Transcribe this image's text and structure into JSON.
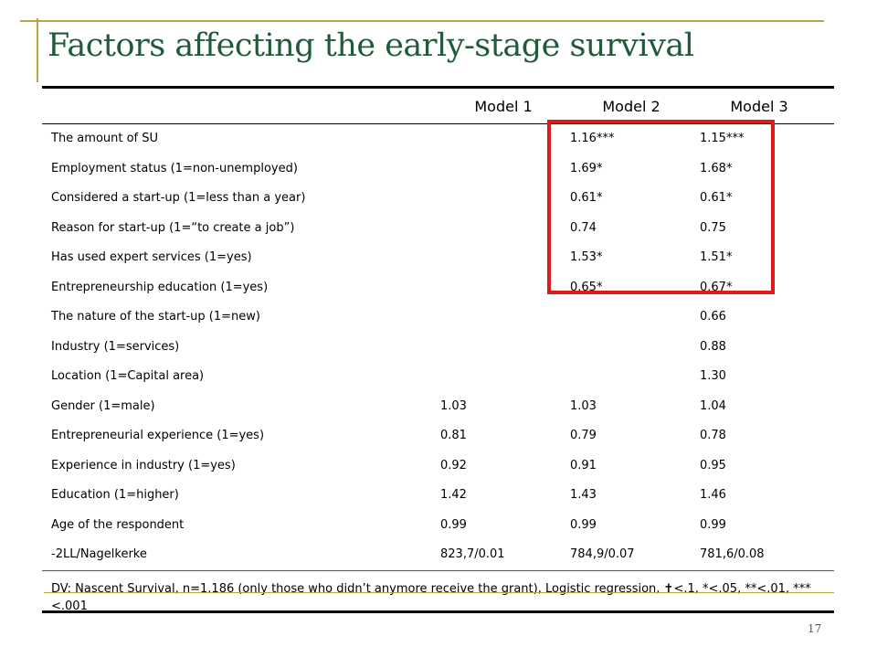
{
  "slide": {
    "title": "Factors affecting the early-stage survival",
    "page_number": "17",
    "accent_color": "#b9a24a",
    "title_color": "#1f5b3a",
    "highlight_color": "#e0191b"
  },
  "table": {
    "headers": [
      "",
      "Model 1",
      "Model 2",
      "Model 3"
    ],
    "rows": [
      {
        "label": "The amount of SU",
        "m1": "",
        "m2": "1.16***",
        "m3": "1.15***"
      },
      {
        "label": "Employment status (1=non-unemployed)",
        "m1": "",
        "m2": "1.69*",
        "m3": "1.68*"
      },
      {
        "label": "Considered a start-up (1=less than a year)",
        "m1": "",
        "m2": "0.61*",
        "m3": "0.61*"
      },
      {
        "label": "Reason for start-up (1=“to create a job”)",
        "m1": "",
        "m2": "0.74",
        "m3": "0.75"
      },
      {
        "label": "Has used expert services (1=yes)",
        "m1": "",
        "m2": "1.53*",
        "m3": "1.51*"
      },
      {
        "label": "Entrepreneurship education (1=yes)",
        "m1": "",
        "m2": "0.65*",
        "m3": "0.67*"
      },
      {
        "label": "The nature of the start-up (1=new)",
        "m1": "",
        "m2": "",
        "m3": "0.66"
      },
      {
        "label": "Industry (1=services)",
        "m1": "",
        "m2": "",
        "m3": "0.88"
      },
      {
        "label": "Location (1=Capital area)",
        "m1": "",
        "m2": "",
        "m3": "1.30"
      },
      {
        "label": "Gender (1=male)",
        "m1": "1.03",
        "m2": "1.03",
        "m3": "1.04"
      },
      {
        "label": "Entrepreneurial experience (1=yes)",
        "m1": "0.81",
        "m2": "0.79",
        "m3": "0.78"
      },
      {
        "label": "Experience in industry (1=yes)",
        "m1": "0.92",
        "m2": "0.91",
        "m3": "0.95"
      },
      {
        "label": "Education (1=higher)",
        "m1": "1.42",
        "m2": "1.43",
        "m3": "1.46"
      },
      {
        "label": "Age of the respondent",
        "m1": "0.99",
        "m2": "0.99",
        "m3": "0.99"
      },
      {
        "label": "-2LL/Nagelkerke",
        "m1": "823,7/0.01",
        "m2": "784,9/0.07",
        "m3": "781,6/0.08"
      }
    ],
    "footnote": "DV: Nascent Survival, n=1.186 (only those who didn’t anymore receive the grant), Logistic regression, ✝<.1, *<.05, **<.01, ***<.001"
  }
}
